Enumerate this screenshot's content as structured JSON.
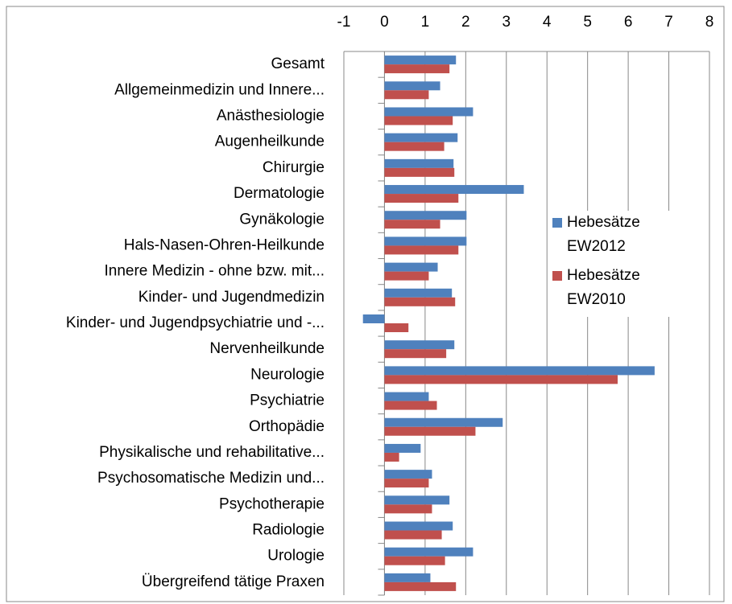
{
  "chart_data": {
    "type": "hbar",
    "categories": [
      "Gesamt",
      "Allgemeinmedizin und Innere...",
      "Anästhesiologie",
      "Augenheilkunde",
      "Chirurgie",
      "Dermatologie",
      "Gynäkologie",
      "Hals-Nasen-Ohren-Heilkunde",
      "Innere Medizin - ohne bzw. mit...",
      "Kinder- und Jugendmedizin",
      "Kinder- und Jugendpsychiatrie und -...",
      "Nervenheilkunde",
      "Neurologie",
      "Psychiatrie",
      "Orthopädie",
      "Physikalische und rehabilitative...",
      "Psychosomatische Medizin und...",
      "Psychotherapie",
      "Radiologie",
      "Urologie",
      "Übergreifend tätige Praxen"
    ],
    "series": [
      {
        "name": "Hebesätze EW2012",
        "color": "#4f81bd",
        "values": [
          1.76,
          1.37,
          2.18,
          1.8,
          1.7,
          3.43,
          2.02,
          2.02,
          1.31,
          1.66,
          -0.53,
          1.72,
          6.65,
          1.09,
          2.91,
          0.89,
          1.17,
          1.6,
          1.68,
          2.18,
          1.13
        ]
      },
      {
        "name": "Hebesätze EW2010",
        "color": "#c0504d",
        "values": [
          1.6,
          1.09,
          1.68,
          1.47,
          1.72,
          1.82,
          1.37,
          1.82,
          1.09,
          1.74,
          0.59,
          1.52,
          5.74,
          1.29,
          2.24,
          0.36,
          1.09,
          1.17,
          1.41,
          1.49,
          1.76
        ]
      }
    ],
    "xlim": [
      -1,
      8
    ],
    "xticks": [
      -1,
      0,
      1,
      2,
      3,
      4,
      5,
      6,
      7,
      8
    ],
    "grid": true,
    "legend": "right"
  }
}
